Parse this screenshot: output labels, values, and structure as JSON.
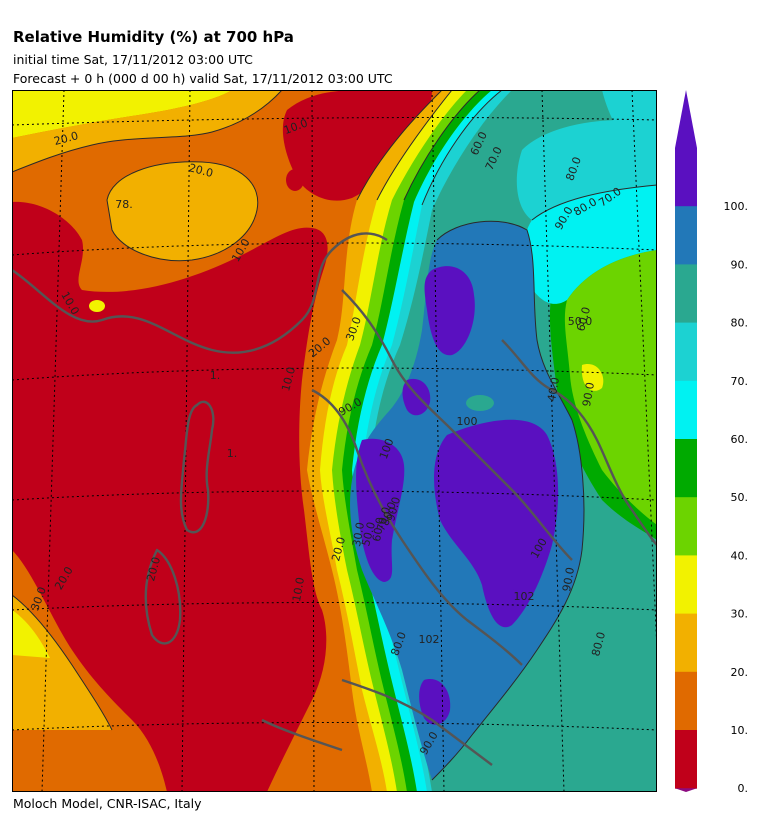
{
  "header": {
    "title": "Relative Humidity (%) at 700 hPa",
    "initial_time": "initial time  Sat, 17/11/2012  03:00 UTC",
    "forecast": "Forecast +   0 h  (000 d 00 h)  valid Sat, 17/11/2012 03:00 UTC"
  },
  "footer": {
    "credit": "Moloch Model, CNR-ISAC, Italy"
  },
  "map": {
    "contour_labels": [
      "20.0",
      "10.0",
      "20.0",
      "78.",
      "10.0",
      "10.0",
      "20.0",
      "30.0",
      "10.0",
      "1.",
      "1.",
      "30.0",
      "20.0",
      "20.0",
      "10.0",
      "20.0",
      "30.0",
      "50.0",
      "60.0",
      "70.0",
      "80.0",
      "90.0",
      "100",
      "90.0",
      "80.0",
      "70.0",
      "60.0",
      "50.0",
      "40.0",
      "90.0",
      "100",
      "102",
      "100",
      "102",
      "90.0",
      "80.0",
      "90.0",
      "80.0",
      "60.0",
      "70.0",
      "80.0",
      "90.0"
    ]
  },
  "legend": {
    "colors": [
      "#c0001a",
      "#e06a00",
      "#f2b000",
      "#f2f200",
      "#6cd400",
      "#00aa00",
      "#00f2f2",
      "#1cd2d2",
      "#2aa890",
      "#2278b8",
      "#5a10c0"
    ],
    "under_color": "#8c0a80",
    "over_color": "#5a10c0",
    "ticks": [
      "0.",
      "10.",
      "20.",
      "30.",
      "40.",
      "50.",
      "60.",
      "70.",
      "80.",
      "90.",
      "100."
    ]
  }
}
